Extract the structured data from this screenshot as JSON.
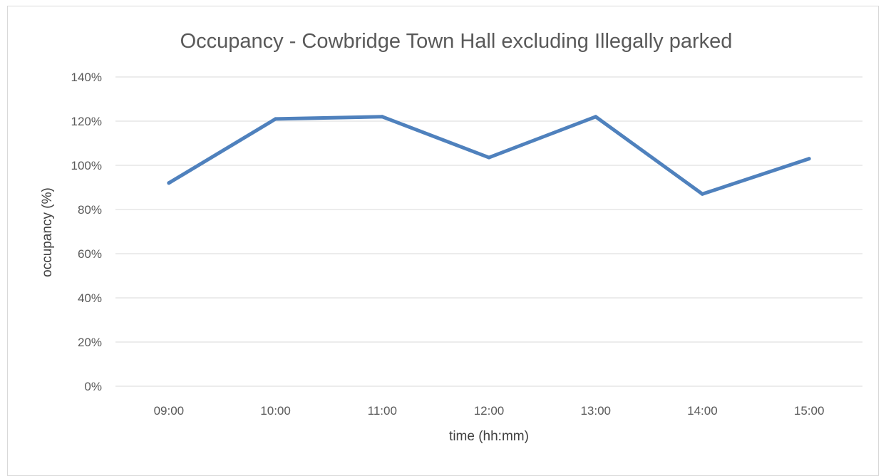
{
  "chart_data": {
    "type": "line",
    "title": "Occupancy - Cowbridge Town Hall excluding Illegally parked",
    "xlabel": "time (hh:mm)",
    "ylabel": "occupancy (%)",
    "categories": [
      "09:00",
      "10:00",
      "11:00",
      "12:00",
      "13:00",
      "14:00",
      "15:00"
    ],
    "series": [
      {
        "values": [
          92,
          121,
          122,
          103.5,
          122,
          87,
          103
        ]
      }
    ],
    "ylim": [
      0,
      140
    ],
    "yticks": [
      0,
      20,
      40,
      60,
      80,
      100,
      120,
      140
    ],
    "ytick_labels": [
      "0%",
      "20%",
      "40%",
      "60%",
      "80%",
      "100%",
      "120%",
      "140%"
    ],
    "grid": true,
    "legend": "none",
    "line_color": "#4f81bd",
    "gridline_color": "#d9d9d9"
  }
}
